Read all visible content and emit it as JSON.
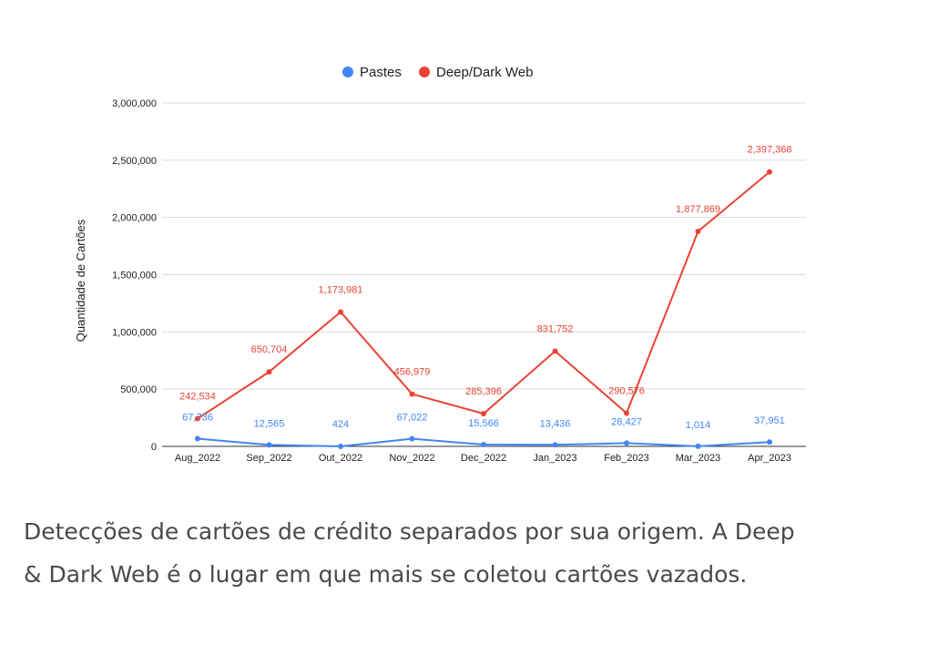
{
  "chart_data": {
    "type": "line",
    "title": "",
    "xlabel": "",
    "ylabel": "Quantidade de Cartões",
    "categories": [
      "Aug_2022",
      "Sep_2022",
      "Out_2022",
      "Nov_2022",
      "Dec_2022",
      "Jan_2023",
      "Feb_2023",
      "Mar_2023",
      "Apr_2023"
    ],
    "ylim": [
      0,
      3000000
    ],
    "yticks": [
      0,
      500000,
      1000000,
      1500000,
      2000000,
      2500000,
      3000000
    ],
    "ytick_labels": [
      "0",
      "500,000",
      "1,000,000",
      "1,500,000",
      "2,000,000",
      "2,500,000",
      "3,000,000"
    ],
    "grid": true,
    "legend_position": "top-center",
    "series": [
      {
        "name": "Pastes",
        "color": "#4285f4",
        "values": [
          67736,
          12565,
          424,
          67022,
          15566,
          13436,
          28427,
          1014,
          37951
        ],
        "labels": [
          "67,736",
          "12,565",
          "424",
          "67,022",
          "15,566",
          "13,436",
          "28,427",
          "1,014",
          "37,951"
        ]
      },
      {
        "name": "Deep/Dark Web",
        "color": "#ea4335",
        "values": [
          242534,
          650704,
          1173981,
          456979,
          285396,
          831752,
          290576,
          1877869,
          2397368
        ],
        "labels": [
          "242,534",
          "650,704",
          "1,173,981",
          "456,979",
          "285,396",
          "831,752",
          "290,576",
          "1,877,869",
          "2,397,368"
        ]
      }
    ]
  },
  "caption": "Detecções de cartões de crédito separados por sua origem. A Deep & Dark Web é o lugar em que mais se coletou cartões vazados."
}
